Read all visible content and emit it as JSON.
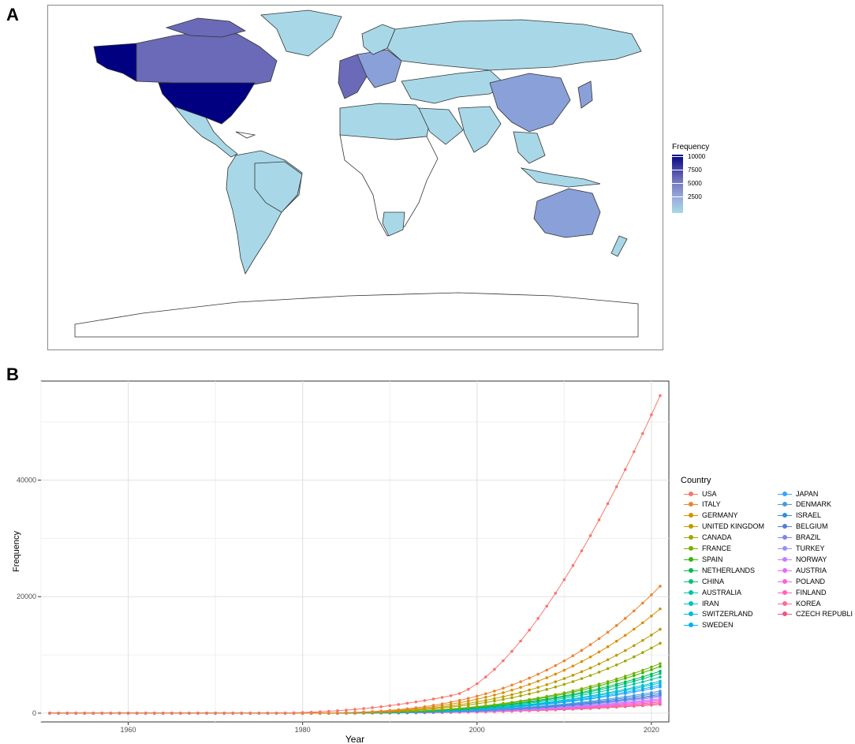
{
  "panels": {
    "a_label": "A",
    "b_label": "B"
  },
  "map": {
    "colorbar_title": "Frequency",
    "colorbar_ticks": [
      "10000",
      "7500",
      "5000",
      "2500"
    ],
    "colors": {
      "low": "#a8d8e8",
      "mid": "#6a6ab8",
      "high": "#000080",
      "none": "#ffffff",
      "border": "#333333"
    }
  },
  "chart_data": {
    "type": "line",
    "xlabel": "Year",
    "ylabel": "Frequency",
    "xlim": [
      1950,
      2022
    ],
    "ylim": [
      -1500,
      57000
    ],
    "xticks": [
      1960,
      1980,
      2000,
      2020
    ],
    "yticks": [
      0,
      20000,
      40000
    ],
    "legend_title": "Country",
    "legend_position": "right",
    "grid": true,
    "x": [
      1951,
      1952,
      1953,
      1954,
      1955,
      1956,
      1957,
      1958,
      1959,
      1960,
      1961,
      1962,
      1963,
      1964,
      1965,
      1966,
      1967,
      1968,
      1969,
      1970,
      1971,
      1972,
      1973,
      1974,
      1975,
      1976,
      1977,
      1978,
      1979,
      1980,
      1981,
      1982,
      1983,
      1984,
      1985,
      1986,
      1987,
      1988,
      1989,
      1990,
      1991,
      1992,
      1993,
      1994,
      1995,
      1996,
      1997,
      1998,
      1999,
      2000,
      2001,
      2002,
      2003,
      2004,
      2005,
      2006,
      2007,
      2008,
      2009,
      2010,
      2011,
      2012,
      2013,
      2014,
      2015,
      2016,
      2017,
      2018,
      2019,
      2020,
      2021
    ],
    "series": [
      {
        "name": "USA",
        "final": 54500,
        "color": "#f8766d"
      },
      {
        "name": "ITALY",
        "final": 21800,
        "color": "#eb8335"
      },
      {
        "name": "GERMANY",
        "final": 17900,
        "color": "#d89000"
      },
      {
        "name": "UNITED KINGDOM",
        "final": 14400,
        "color": "#c09b00"
      },
      {
        "name": "CANADA",
        "final": 12000,
        "color": "#a3a500"
      },
      {
        "name": "FRANCE",
        "final": 8500,
        "color": "#7cae00"
      },
      {
        "name": "SPAIN",
        "final": 8000,
        "color": "#39b600"
      },
      {
        "name": "NETHERLANDS",
        "final": 7200,
        "color": "#00bb4e"
      },
      {
        "name": "CHINA",
        "final": 6800,
        "color": "#00bf7d"
      },
      {
        "name": "AUSTRALIA",
        "final": 6200,
        "color": "#00c1a3"
      },
      {
        "name": "IRAN",
        "final": 5500,
        "color": "#00bfc4"
      },
      {
        "name": "SWITZERLAND",
        "final": 5200,
        "color": "#00bae0"
      },
      {
        "name": "SWEDEN",
        "final": 4800,
        "color": "#00b0f6"
      },
      {
        "name": "JAPAN",
        "final": 4500,
        "color": "#35a2ff"
      },
      {
        "name": "DENMARK",
        "final": 3800,
        "color": "#4a9bd8"
      },
      {
        "name": "ISRAEL",
        "final": 3500,
        "color": "#2f8fe0"
      },
      {
        "name": "BELGIUM",
        "final": 3200,
        "color": "#5a7ad6"
      },
      {
        "name": "BRAZIL",
        "final": 3000,
        "color": "#7a86f0"
      },
      {
        "name": "TURKEY",
        "final": 2800,
        "color": "#9590ff"
      },
      {
        "name": "NORWAY",
        "final": 2500,
        "color": "#c77cff"
      },
      {
        "name": "AUSTRIA",
        "final": 2300,
        "color": "#e76bf3"
      },
      {
        "name": "POLAND",
        "final": 2100,
        "color": "#fa62db"
      },
      {
        "name": "FINLAND",
        "final": 1900,
        "color": "#ff62bc"
      },
      {
        "name": "KOREA",
        "final": 1700,
        "color": "#ff6a98"
      },
      {
        "name": "CZECH REPUBLI",
        "final": 1500,
        "color": "#f0557a"
      }
    ]
  }
}
